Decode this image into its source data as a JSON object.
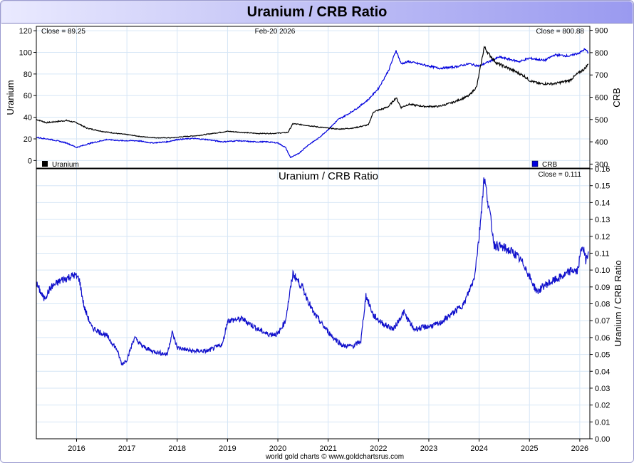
{
  "title": "Uranium / CRB Ratio",
  "footer": "world gold charts © www.goldchartsrus.com",
  "colors": {
    "uranium": "#000000",
    "crb": "#0000dd",
    "ratio": "#1111cc",
    "grid": "#d6e6f6",
    "title_bg": "#b0b0f0"
  },
  "chart_data": [
    {
      "type": "line",
      "title": "",
      "date_label": "Feb-20  2026",
      "close_left": "Close = 89.25",
      "close_right": "Close = 800.88",
      "ylabel": "Uranium",
      "y2label": "CRB",
      "ylim": [
        -7,
        124
      ],
      "y2lim": [
        282,
        918
      ],
      "yticks": [
        0,
        20,
        40,
        60,
        80,
        100,
        120
      ],
      "y2ticks": [
        300,
        400,
        500,
        600,
        700,
        800,
        900
      ],
      "xlim": [
        2015.2,
        2026.2
      ],
      "legend": {
        "left": "Uranium",
        "right": "CRB",
        "placement": "bottom"
      },
      "grid": true,
      "series": [
        {
          "name": "Uranium",
          "axis": "left",
          "color": "#000000",
          "points": [
            [
              2015.2,
              38
            ],
            [
              2015.4,
              35
            ],
            [
              2015.6,
              36
            ],
            [
              2015.8,
              37
            ],
            [
              2016.0,
              35
            ],
            [
              2016.2,
              30
            ],
            [
              2016.5,
              27
            ],
            [
              2016.8,
              25
            ],
            [
              2017.0,
              24
            ],
            [
              2017.3,
              22
            ],
            [
              2017.6,
              21
            ],
            [
              2017.9,
              21
            ],
            [
              2018.1,
              22
            ],
            [
              2018.4,
              23
            ],
            [
              2018.7,
              25
            ],
            [
              2019.0,
              27
            ],
            [
              2019.3,
              26
            ],
            [
              2019.6,
              25
            ],
            [
              2019.9,
              25
            ],
            [
              2020.2,
              26
            ],
            [
              2020.3,
              34
            ],
            [
              2020.5,
              33
            ],
            [
              2020.8,
              31
            ],
            [
              2021.0,
              30
            ],
            [
              2021.2,
              29
            ],
            [
              2021.5,
              30
            ],
            [
              2021.8,
              33
            ],
            [
              2021.9,
              45
            ],
            [
              2022.1,
              48
            ],
            [
              2022.2,
              50
            ],
            [
              2022.35,
              58
            ],
            [
              2022.45,
              49
            ],
            [
              2022.6,
              52
            ],
            [
              2022.9,
              50
            ],
            [
              2023.2,
              50
            ],
            [
              2023.5,
              54
            ],
            [
              2023.8,
              60
            ],
            [
              2023.95,
              68
            ],
            [
              2024.05,
              92
            ],
            [
              2024.1,
              105
            ],
            [
              2024.2,
              98
            ],
            [
              2024.35,
              90
            ],
            [
              2024.6,
              85
            ],
            [
              2024.9,
              78
            ],
            [
              2025.0,
              74
            ],
            [
              2025.2,
              71
            ],
            [
              2025.5,
              71
            ],
            [
              2025.8,
              74
            ],
            [
              2025.95,
              80
            ],
            [
              2026.1,
              85
            ],
            [
              2026.17,
              89.25
            ]
          ]
        },
        {
          "name": "CRB",
          "axis": "right",
          "color": "#0000dd",
          "points": [
            [
              2015.2,
              420
            ],
            [
              2015.5,
              410
            ],
            [
              2015.8,
              395
            ],
            [
              2016.0,
              375
            ],
            [
              2016.3,
              395
            ],
            [
              2016.6,
              410
            ],
            [
              2016.9,
              405
            ],
            [
              2017.2,
              405
            ],
            [
              2017.5,
              395
            ],
            [
              2017.8,
              400
            ],
            [
              2018.0,
              410
            ],
            [
              2018.3,
              415
            ],
            [
              2018.6,
              410
            ],
            [
              2018.9,
              400
            ],
            [
              2019.2,
              405
            ],
            [
              2019.5,
              400
            ],
            [
              2019.8,
              400
            ],
            [
              2020.0,
              395
            ],
            [
              2020.15,
              375
            ],
            [
              2020.25,
              330
            ],
            [
              2020.4,
              345
            ],
            [
              2020.6,
              385
            ],
            [
              2020.8,
              415
            ],
            [
              2021.0,
              455
            ],
            [
              2021.2,
              500
            ],
            [
              2021.4,
              525
            ],
            [
              2021.6,
              555
            ],
            [
              2021.8,
              590
            ],
            [
              2022.0,
              640
            ],
            [
              2022.2,
              720
            ],
            [
              2022.35,
              810
            ],
            [
              2022.45,
              750
            ],
            [
              2022.6,
              760
            ],
            [
              2022.9,
              745
            ],
            [
              2023.2,
              730
            ],
            [
              2023.5,
              735
            ],
            [
              2023.8,
              750
            ],
            [
              2024.0,
              740
            ],
            [
              2024.2,
              760
            ],
            [
              2024.4,
              780
            ],
            [
              2024.6,
              770
            ],
            [
              2024.8,
              760
            ],
            [
              2025.0,
              775
            ],
            [
              2025.3,
              765
            ],
            [
              2025.5,
              790
            ],
            [
              2025.8,
              785
            ],
            [
              2026.0,
              800
            ],
            [
              2026.1,
              815
            ],
            [
              2026.17,
              800.88
            ]
          ]
        }
      ]
    },
    {
      "type": "line",
      "title": "Uranium  /  CRB Ratio",
      "close_right": "Close = 0.111",
      "ylabel": "Uranium / CRB Ratio",
      "ylim": [
        0,
        0.16
      ],
      "y2ticks": [
        0.0,
        0.01,
        0.02,
        0.03,
        0.04,
        0.05,
        0.06,
        0.07,
        0.08,
        0.09,
        0.1,
        0.11,
        0.12,
        0.13,
        0.14,
        0.15,
        0.16
      ],
      "xlim": [
        2015.2,
        2026.2
      ],
      "xticks": [
        2016,
        2017,
        2018,
        2019,
        2020,
        2021,
        2022,
        2023,
        2024,
        2025,
        2026
      ],
      "grid": true,
      "series": [
        {
          "name": "Uranium / CRB Ratio",
          "axis": "right",
          "color": "#1111cc",
          "points": [
            [
              2015.2,
              0.092
            ],
            [
              2015.35,
              0.083
            ],
            [
              2015.5,
              0.09
            ],
            [
              2015.7,
              0.094
            ],
            [
              2015.95,
              0.097
            ],
            [
              2016.05,
              0.095
            ],
            [
              2016.15,
              0.078
            ],
            [
              2016.3,
              0.066
            ],
            [
              2016.6,
              0.061
            ],
            [
              2016.8,
              0.053
            ],
            [
              2016.9,
              0.044
            ],
            [
              2017.0,
              0.047
            ],
            [
              2017.15,
              0.06
            ],
            [
              2017.3,
              0.055
            ],
            [
              2017.5,
              0.052
            ],
            [
              2017.8,
              0.05
            ],
            [
              2017.9,
              0.063
            ],
            [
              2018.0,
              0.054
            ],
            [
              2018.3,
              0.052
            ],
            [
              2018.6,
              0.052
            ],
            [
              2018.9,
              0.056
            ],
            [
              2019.0,
              0.07
            ],
            [
              2019.3,
              0.071
            ],
            [
              2019.6,
              0.065
            ],
            [
              2019.8,
              0.062
            ],
            [
              2020.0,
              0.062
            ],
            [
              2020.15,
              0.07
            ],
            [
              2020.3,
              0.098
            ],
            [
              2020.5,
              0.089
            ],
            [
              2020.7,
              0.075
            ],
            [
              2020.9,
              0.067
            ],
            [
              2021.1,
              0.06
            ],
            [
              2021.3,
              0.055
            ],
            [
              2021.5,
              0.055
            ],
            [
              2021.65,
              0.058
            ],
            [
              2021.75,
              0.085
            ],
            [
              2021.9,
              0.073
            ],
            [
              2022.1,
              0.068
            ],
            [
              2022.3,
              0.065
            ],
            [
              2022.5,
              0.075
            ],
            [
              2022.7,
              0.065
            ],
            [
              2022.9,
              0.066
            ],
            [
              2023.2,
              0.068
            ],
            [
              2023.5,
              0.075
            ],
            [
              2023.7,
              0.08
            ],
            [
              2023.9,
              0.095
            ],
            [
              2024.0,
              0.12
            ],
            [
              2024.1,
              0.155
            ],
            [
              2024.2,
              0.136
            ],
            [
              2024.3,
              0.115
            ],
            [
              2024.5,
              0.113
            ],
            [
              2024.7,
              0.11
            ],
            [
              2024.9,
              0.103
            ],
            [
              2025.0,
              0.096
            ],
            [
              2025.15,
              0.087
            ],
            [
              2025.3,
              0.091
            ],
            [
              2025.5,
              0.094
            ],
            [
              2025.7,
              0.097
            ],
            [
              2025.85,
              0.1
            ],
            [
              2025.95,
              0.099
            ],
            [
              2026.05,
              0.115
            ],
            [
              2026.12,
              0.106
            ],
            [
              2026.17,
              0.111
            ]
          ]
        }
      ]
    }
  ]
}
